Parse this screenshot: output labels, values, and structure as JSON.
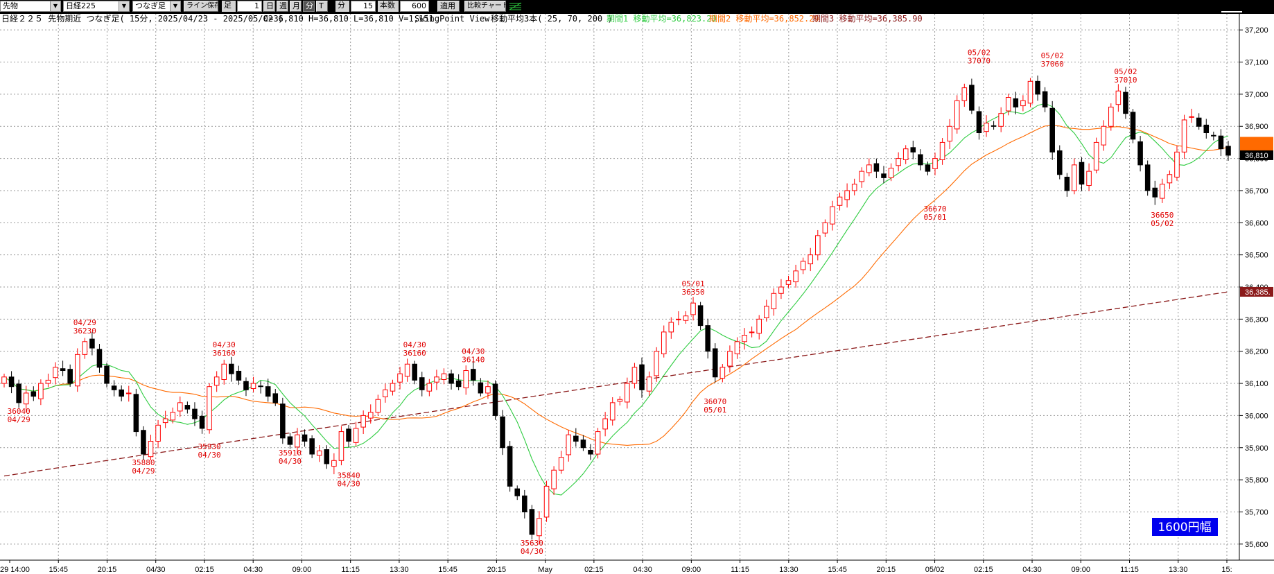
{
  "toolbar": {
    "market_select": "先物",
    "index_select": "日経225",
    "type_select": "つなぎ足",
    "save_line": "ライン保存",
    "foot_label": "足",
    "foot_value": "1",
    "day": "日",
    "week": "週",
    "month": "月",
    "minute": "分",
    "tick": "T",
    "minute_label": "分",
    "interval_value": "15",
    "count_label": "本数",
    "count_value": "600",
    "apply": "適用",
    "compare": "比較チャート"
  },
  "header": {
    "title": "日経２２５ 先物期近 つなぎ足( 15分, 2025/04/23 - 2025/05/02 )",
    "ohlcv": "C=36,810 H=36,810 L=36,810 V=1,151",
    "view": "SwingPoint View",
    "ma_title": "移動平均3本( 25, 70, 200 )",
    "ma1": "期間1 移動平均=36,823.20",
    "ma2": "期間2 移動平均=36,852.29",
    "ma3": "期間3 移動平均=36,385.90"
  },
  "colors": {
    "ma1": "#2ecc40",
    "ma2": "#ff6a00",
    "ma3": "#8b1a1a",
    "up": "#ff0000",
    "down": "#000000",
    "annotation": "#e00000",
    "badge": "#0000ee"
  },
  "badge": "1600円幅",
  "chart_data": {
    "type": "candlestick",
    "ylim": [
      35550,
      37250
    ],
    "y_ticks": [
      "37,200",
      "37,100",
      "37,000",
      "36,900",
      "36,800",
      "36,700",
      "36,600",
      "36,500",
      "36,400",
      "36,300",
      "36,200",
      "36,100",
      "36,000",
      "35,900",
      "35,800",
      "35,700",
      "35,600"
    ],
    "x_labels": [
      "29 14:00",
      "15:45",
      "20:15",
      "04/30",
      "02:15",
      "04:30",
      "09:00",
      "11:15",
      "13:30",
      "15:45",
      "20:15",
      "May",
      "02:15",
      "04:30",
      "09:00",
      "11:15",
      "13:30",
      "15:45",
      "20:15",
      "05/02",
      "02:15",
      "04:30",
      "09:00",
      "11:15",
      "13:30",
      "15:"
    ],
    "last_price": "36,810",
    "ma1_last": "36,823",
    "ma2_last": "36,852",
    "ma3_last": "36,385.",
    "closes": [
      36120,
      36090,
      36040,
      36070,
      36060,
      36100,
      36110,
      36150,
      36140,
      36100,
      36190,
      36230,
      36210,
      36150,
      36100,
      36080,
      36060,
      36070,
      35950,
      35880,
      35920,
      35970,
      35990,
      36010,
      36040,
      36020,
      35990,
      35960,
      36090,
      36120,
      36160,
      36130,
      36110,
      36080,
      36100,
      36090,
      36060,
      36040,
      35930,
      35910,
      35940,
      35920,
      35880,
      35890,
      35850,
      35860,
      35950,
      35920,
      35960,
      36000,
      36010,
      36050,
      36080,
      36100,
      36130,
      36160,
      36110,
      36080,
      36100,
      36120,
      36130,
      36100,
      36090,
      36140,
      36110,
      36070,
      36090,
      36000,
      35900,
      35780,
      35750,
      35700,
      35630,
      35680,
      35780,
      35830,
      35870,
      35940,
      35920,
      35900,
      35880,
      35950,
      35990,
      36040,
      36050,
      36100,
      36150,
      36080,
      36120,
      36200,
      36260,
      36290,
      36300,
      36310,
      36350,
      36280,
      36200,
      36120,
      36150,
      36200,
      36230,
      36250,
      36260,
      36300,
      36340,
      36380,
      36400,
      36420,
      36450,
      36480,
      36500,
      36560,
      36600,
      36650,
      36680,
      36700,
      36720,
      36760,
      36780,
      36760,
      36740,
      36770,
      36800,
      36830,
      36820,
      36780,
      36760,
      36800,
      36850,
      36900,
      36980,
      37020,
      36950,
      36880,
      36910,
      36900,
      36940,
      36990,
      36960,
      36980,
      37040,
      37000,
      36960,
      36820,
      36750,
      36700,
      36780,
      36720,
      36760,
      36850,
      36900,
      36960,
      37010,
      36940,
      36860,
      36780,
      36700,
      36680,
      36720,
      36750,
      36820,
      36920,
      36930,
      36900,
      36880,
      36870,
      36830,
      36810
    ],
    "swing_points": [
      {
        "date": "04/29",
        "price": "36230",
        "pos": "top",
        "i": 11
      },
      {
        "date": "04/29",
        "price": "36040",
        "pos": "bottom",
        "i": 2
      },
      {
        "date": "04/29",
        "price": "35880",
        "pos": "bottom",
        "i": 19
      },
      {
        "date": "04/30",
        "price": "36160",
        "pos": "top",
        "i": 30
      },
      {
        "date": "04/30",
        "price": "35930",
        "pos": "bottom",
        "i": 28
      },
      {
        "date": "04/30",
        "price": "35910",
        "pos": "bottom",
        "i": 39
      },
      {
        "date": "04/30",
        "price": "35840",
        "pos": "bottom",
        "i": 47
      },
      {
        "date": "04/30",
        "price": "36160",
        "pos": "top",
        "i": 56
      },
      {
        "date": "04/30",
        "price": "36140",
        "pos": "top",
        "i": 64
      },
      {
        "date": "04/30",
        "price": "35630",
        "pos": "bottom",
        "i": 72
      },
      {
        "date": "05/01",
        "price": "36350",
        "pos": "top",
        "i": 94
      },
      {
        "date": "05/01",
        "price": "36070",
        "pos": "bottom",
        "i": 97
      },
      {
        "date": "05/01",
        "price": "36670",
        "pos": "bottom",
        "i": 127
      },
      {
        "date": "05/02",
        "price": "37070",
        "pos": "top",
        "i": 133
      },
      {
        "date": "05/02",
        "price": "37060",
        "pos": "top",
        "i": 143
      },
      {
        "date": "05/02",
        "price": "37010",
        "pos": "top",
        "i": 153
      },
      {
        "date": "05/02",
        "price": "36650",
        "pos": "bottom",
        "i": 158
      }
    ]
  }
}
